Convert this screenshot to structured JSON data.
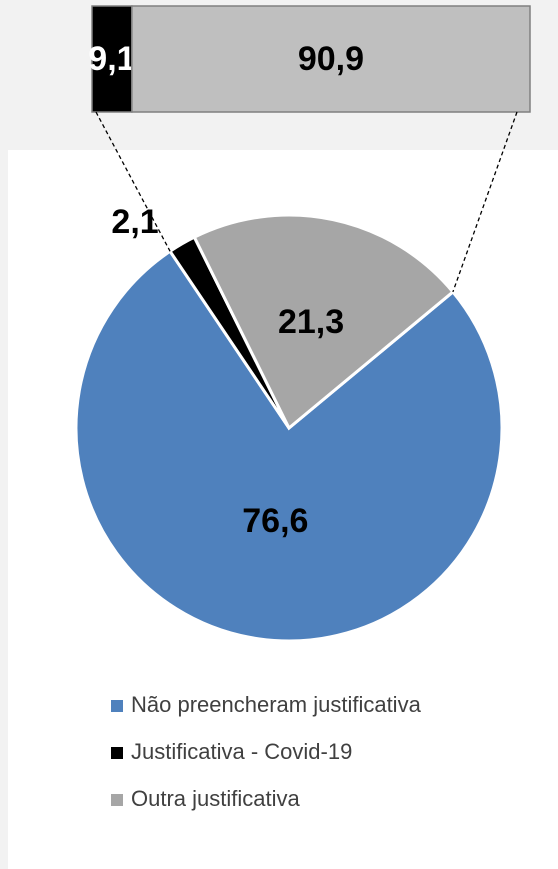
{
  "chart_data": [
    {
      "type": "pie",
      "categories": [
        "Não preencheram justificativa",
        "Justificativa - Covid-19",
        "Outra justificativa"
      ],
      "values": [
        76.6,
        2.1,
        21.3
      ],
      "value_labels": [
        "76,6",
        "2,1",
        "21,3"
      ],
      "colors": [
        "#4f81bd",
        "#000000",
        "#a6a6a6"
      ],
      "legend": "bottom"
    },
    {
      "type": "stacked-bar",
      "values": [
        9.1,
        90.9
      ],
      "value_labels": [
        "9,1",
        "90,9"
      ],
      "colors": [
        "#000000",
        "#bfbfbf"
      ],
      "label_colors": [
        "#ffffff",
        "#000000"
      ],
      "xlim": [
        0,
        100
      ]
    }
  ]
}
